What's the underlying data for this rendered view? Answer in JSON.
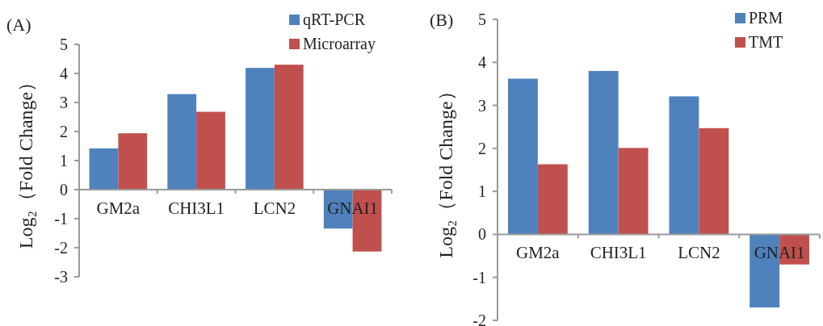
{
  "chart_data": [
    {
      "type": "bar",
      "title": "(A)",
      "ylabel": "Log₂（Fold Change）",
      "categories": [
        "GM2a",
        "CHI3L1",
        "LCN2",
        "GNAI1"
      ],
      "series": [
        {
          "name": "qRT-PCR",
          "color": "#4f81bd",
          "values": [
            1.42,
            3.29,
            4.19,
            -1.34
          ]
        },
        {
          "name": "Microarray",
          "color": "#c0504d",
          "values": [
            1.94,
            2.68,
            4.3,
            -2.13
          ]
        }
      ],
      "ylim": [
        -3,
        5
      ],
      "yticks": [
        -3,
        -2,
        -1,
        0,
        1,
        2,
        3,
        4,
        5
      ],
      "legend": "top right"
    },
    {
      "type": "bar",
      "title": "(B)",
      "ylabel": "Log₂（Fold Change）",
      "categories": [
        "GM2a",
        "CHI3L1",
        "LCN2",
        "GNAI1"
      ],
      "series": [
        {
          "name": "PRM",
          "color": "#4f81bd",
          "values": [
            3.62,
            3.8,
            3.21,
            -1.7
          ]
        },
        {
          "name": "TMT",
          "color": "#c0504d",
          "values": [
            1.63,
            2.01,
            2.47,
            -0.7
          ]
        }
      ],
      "ylim": [
        -2,
        5
      ],
      "yticks": [
        -2,
        -1,
        0,
        1,
        2,
        3,
        4,
        5
      ],
      "legend": "top right"
    }
  ]
}
